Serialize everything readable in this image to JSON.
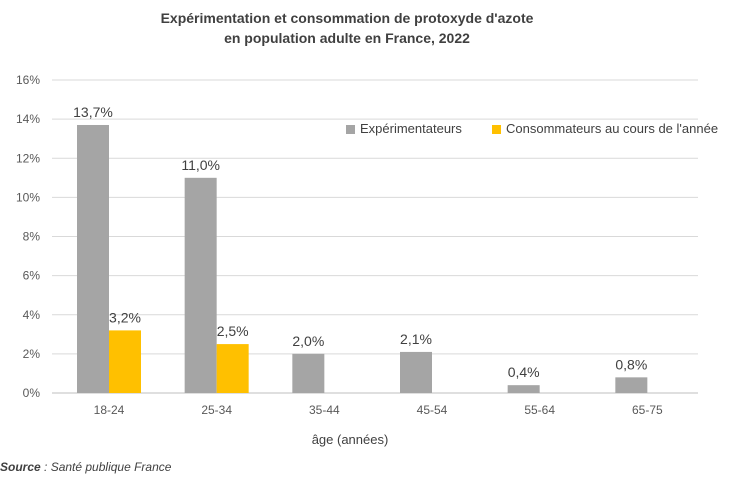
{
  "chart_data": {
    "type": "bar",
    "title_line1": "Expérimentation et consommation de protoxyde d'azote",
    "title_line2": "en population adulte en France, 2022",
    "xlabel": "âge (années)",
    "ylabel": "",
    "categories": [
      "18-24",
      "25-34",
      "35-44",
      "45-54",
      "55-64",
      "65-75"
    ],
    "series": [
      {
        "name": "Expérimentateurs",
        "color": "#a5a5a5",
        "values": [
          13.7,
          11.0,
          2.0,
          2.1,
          0.4,
          0.8
        ],
        "labels": [
          "13,7%",
          "11,0%",
          "2,0%",
          "2,1%",
          "0,4%",
          "0,8%"
        ]
      },
      {
        "name": "Consommateurs au cours de l'année",
        "color": "#ffc000",
        "values": [
          3.2,
          2.5,
          null,
          null,
          null,
          null
        ],
        "labels": [
          "3,2%",
          "2,5%",
          "",
          "",
          "",
          ""
        ]
      }
    ],
    "ylim": [
      0,
      16
    ],
    "yticks": [
      "0%",
      "2%",
      "4%",
      "6%",
      "8%",
      "10%",
      "12%",
      "14%",
      "16%"
    ],
    "grid": true,
    "legend_position": "top-right"
  },
  "source": {
    "label": "Source",
    "text": " : Santé publique France"
  }
}
